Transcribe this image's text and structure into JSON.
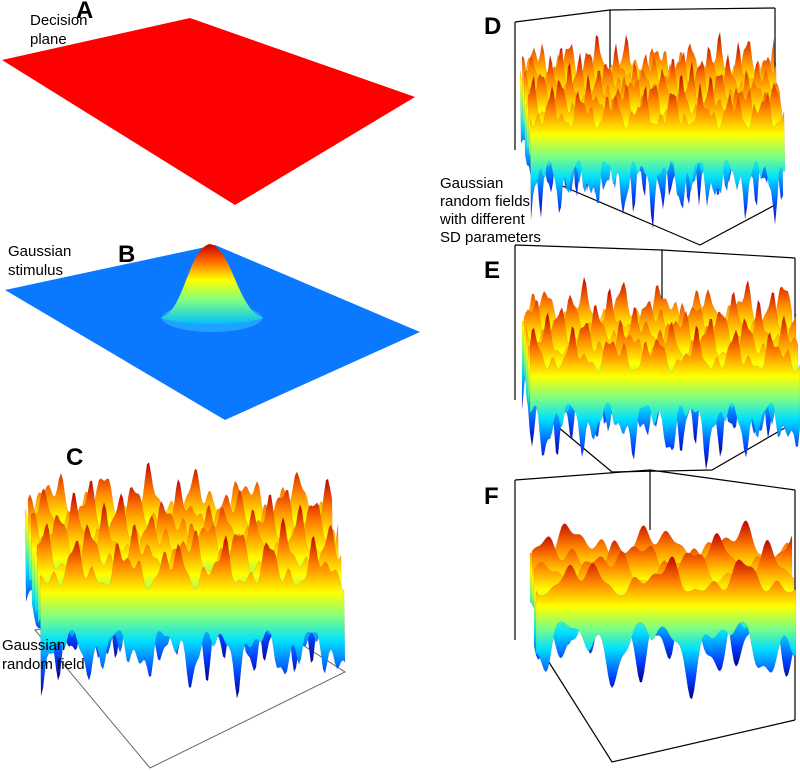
{
  "panels": [
    {
      "label": "A",
      "caption": [
        "Decision",
        "plane"
      ]
    },
    {
      "label": "B",
      "caption": [
        "Gaussian",
        "stimulus"
      ]
    },
    {
      "label": "C",
      "caption": [
        "Gaussian",
        "random field"
      ]
    },
    {
      "label": "D",
      "caption": [
        "Gaussian",
        "random fields",
        "with different",
        "SD parameters"
      ]
    },
    {
      "label": "E"
    },
    {
      "label": "F"
    }
  ]
}
